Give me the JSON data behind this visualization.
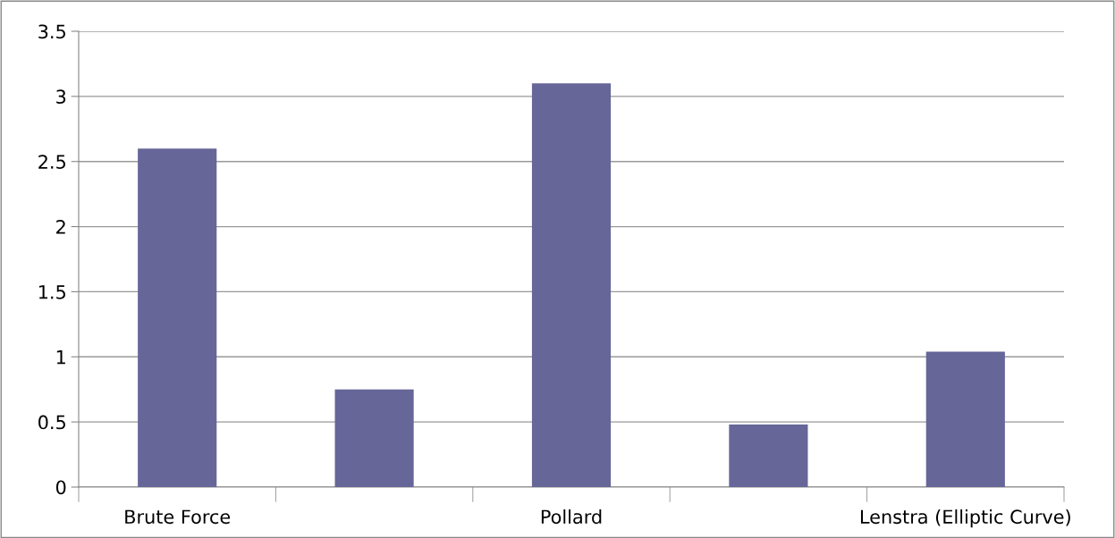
{
  "chart_data": {
    "type": "bar",
    "categories": [
      "Brute Force",
      null,
      "Pollard",
      null,
      "Lenstra (Elliptic Curve)"
    ],
    "values": [
      2.6,
      0.75,
      3.1,
      0.48,
      1.04
    ],
    "color": "#666699",
    "ylim": [
      0,
      3.5
    ],
    "yticks": [
      0,
      0.5,
      1,
      1.5,
      2,
      2.5,
      3,
      3.5
    ],
    "grid": "y",
    "legend": false
  }
}
